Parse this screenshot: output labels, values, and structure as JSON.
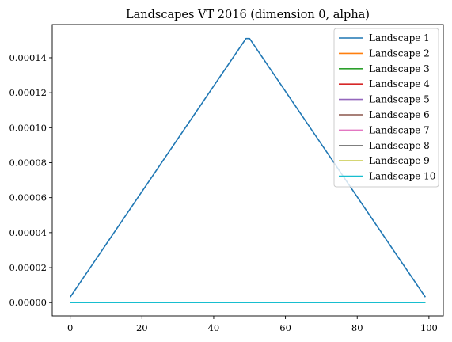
{
  "chart_data": {
    "type": "line",
    "title": "Landscapes VT 2016 (dimension 0, alpha)",
    "xlabel": "",
    "ylabel": "",
    "xlim": [
      -5,
      104
    ],
    "ylim": [
      -7.6e-06,
      0.000159
    ],
    "xticks": [
      0,
      20,
      40,
      60,
      80,
      100
    ],
    "xtick_labels": [
      "0",
      "20",
      "40",
      "60",
      "80",
      "100"
    ],
    "yticks": [
      0,
      2e-05,
      4e-05,
      6e-05,
      8e-05,
      0.0001,
      0.00012,
      0.00014
    ],
    "ytick_labels": [
      "0.00000",
      "0.00002",
      "0.00004",
      "0.00006",
      "0.00008",
      "0.00010",
      "0.00012",
      "0.00014"
    ],
    "grid": false,
    "legend_position": "top-right",
    "series": [
      {
        "name": "Landscape 1",
        "color": "#1f77b4",
        "points": [
          [
            0,
            3.1e-06
          ],
          [
            49,
            0.000151
          ],
          [
            50,
            0.000151
          ],
          [
            99,
            3.1e-06
          ]
        ]
      },
      {
        "name": "Landscape 2",
        "color": "#ff7f0e",
        "points": [
          [
            0,
            0
          ],
          [
            99,
            0
          ]
        ]
      },
      {
        "name": "Landscape 3",
        "color": "#2ca02c",
        "points": [
          [
            0,
            0
          ],
          [
            99,
            0
          ]
        ]
      },
      {
        "name": "Landscape 4",
        "color": "#d62728",
        "points": [
          [
            0,
            0
          ],
          [
            99,
            0
          ]
        ]
      },
      {
        "name": "Landscape 5",
        "color": "#9467bd",
        "points": [
          [
            0,
            0
          ],
          [
            99,
            0
          ]
        ]
      },
      {
        "name": "Landscape 6",
        "color": "#8c564b",
        "points": [
          [
            0,
            0
          ],
          [
            99,
            0
          ]
        ]
      },
      {
        "name": "Landscape 7",
        "color": "#e377c2",
        "points": [
          [
            0,
            0
          ],
          [
            99,
            0
          ]
        ]
      },
      {
        "name": "Landscape 8",
        "color": "#7f7f7f",
        "points": [
          [
            0,
            0
          ],
          [
            99,
            0
          ]
        ]
      },
      {
        "name": "Landscape 9",
        "color": "#bcbd22",
        "points": [
          [
            0,
            0
          ],
          [
            99,
            0
          ]
        ]
      },
      {
        "name": "Landscape 10",
        "color": "#17becf",
        "points": [
          [
            0,
            0
          ],
          [
            99,
            0
          ]
        ]
      }
    ]
  }
}
